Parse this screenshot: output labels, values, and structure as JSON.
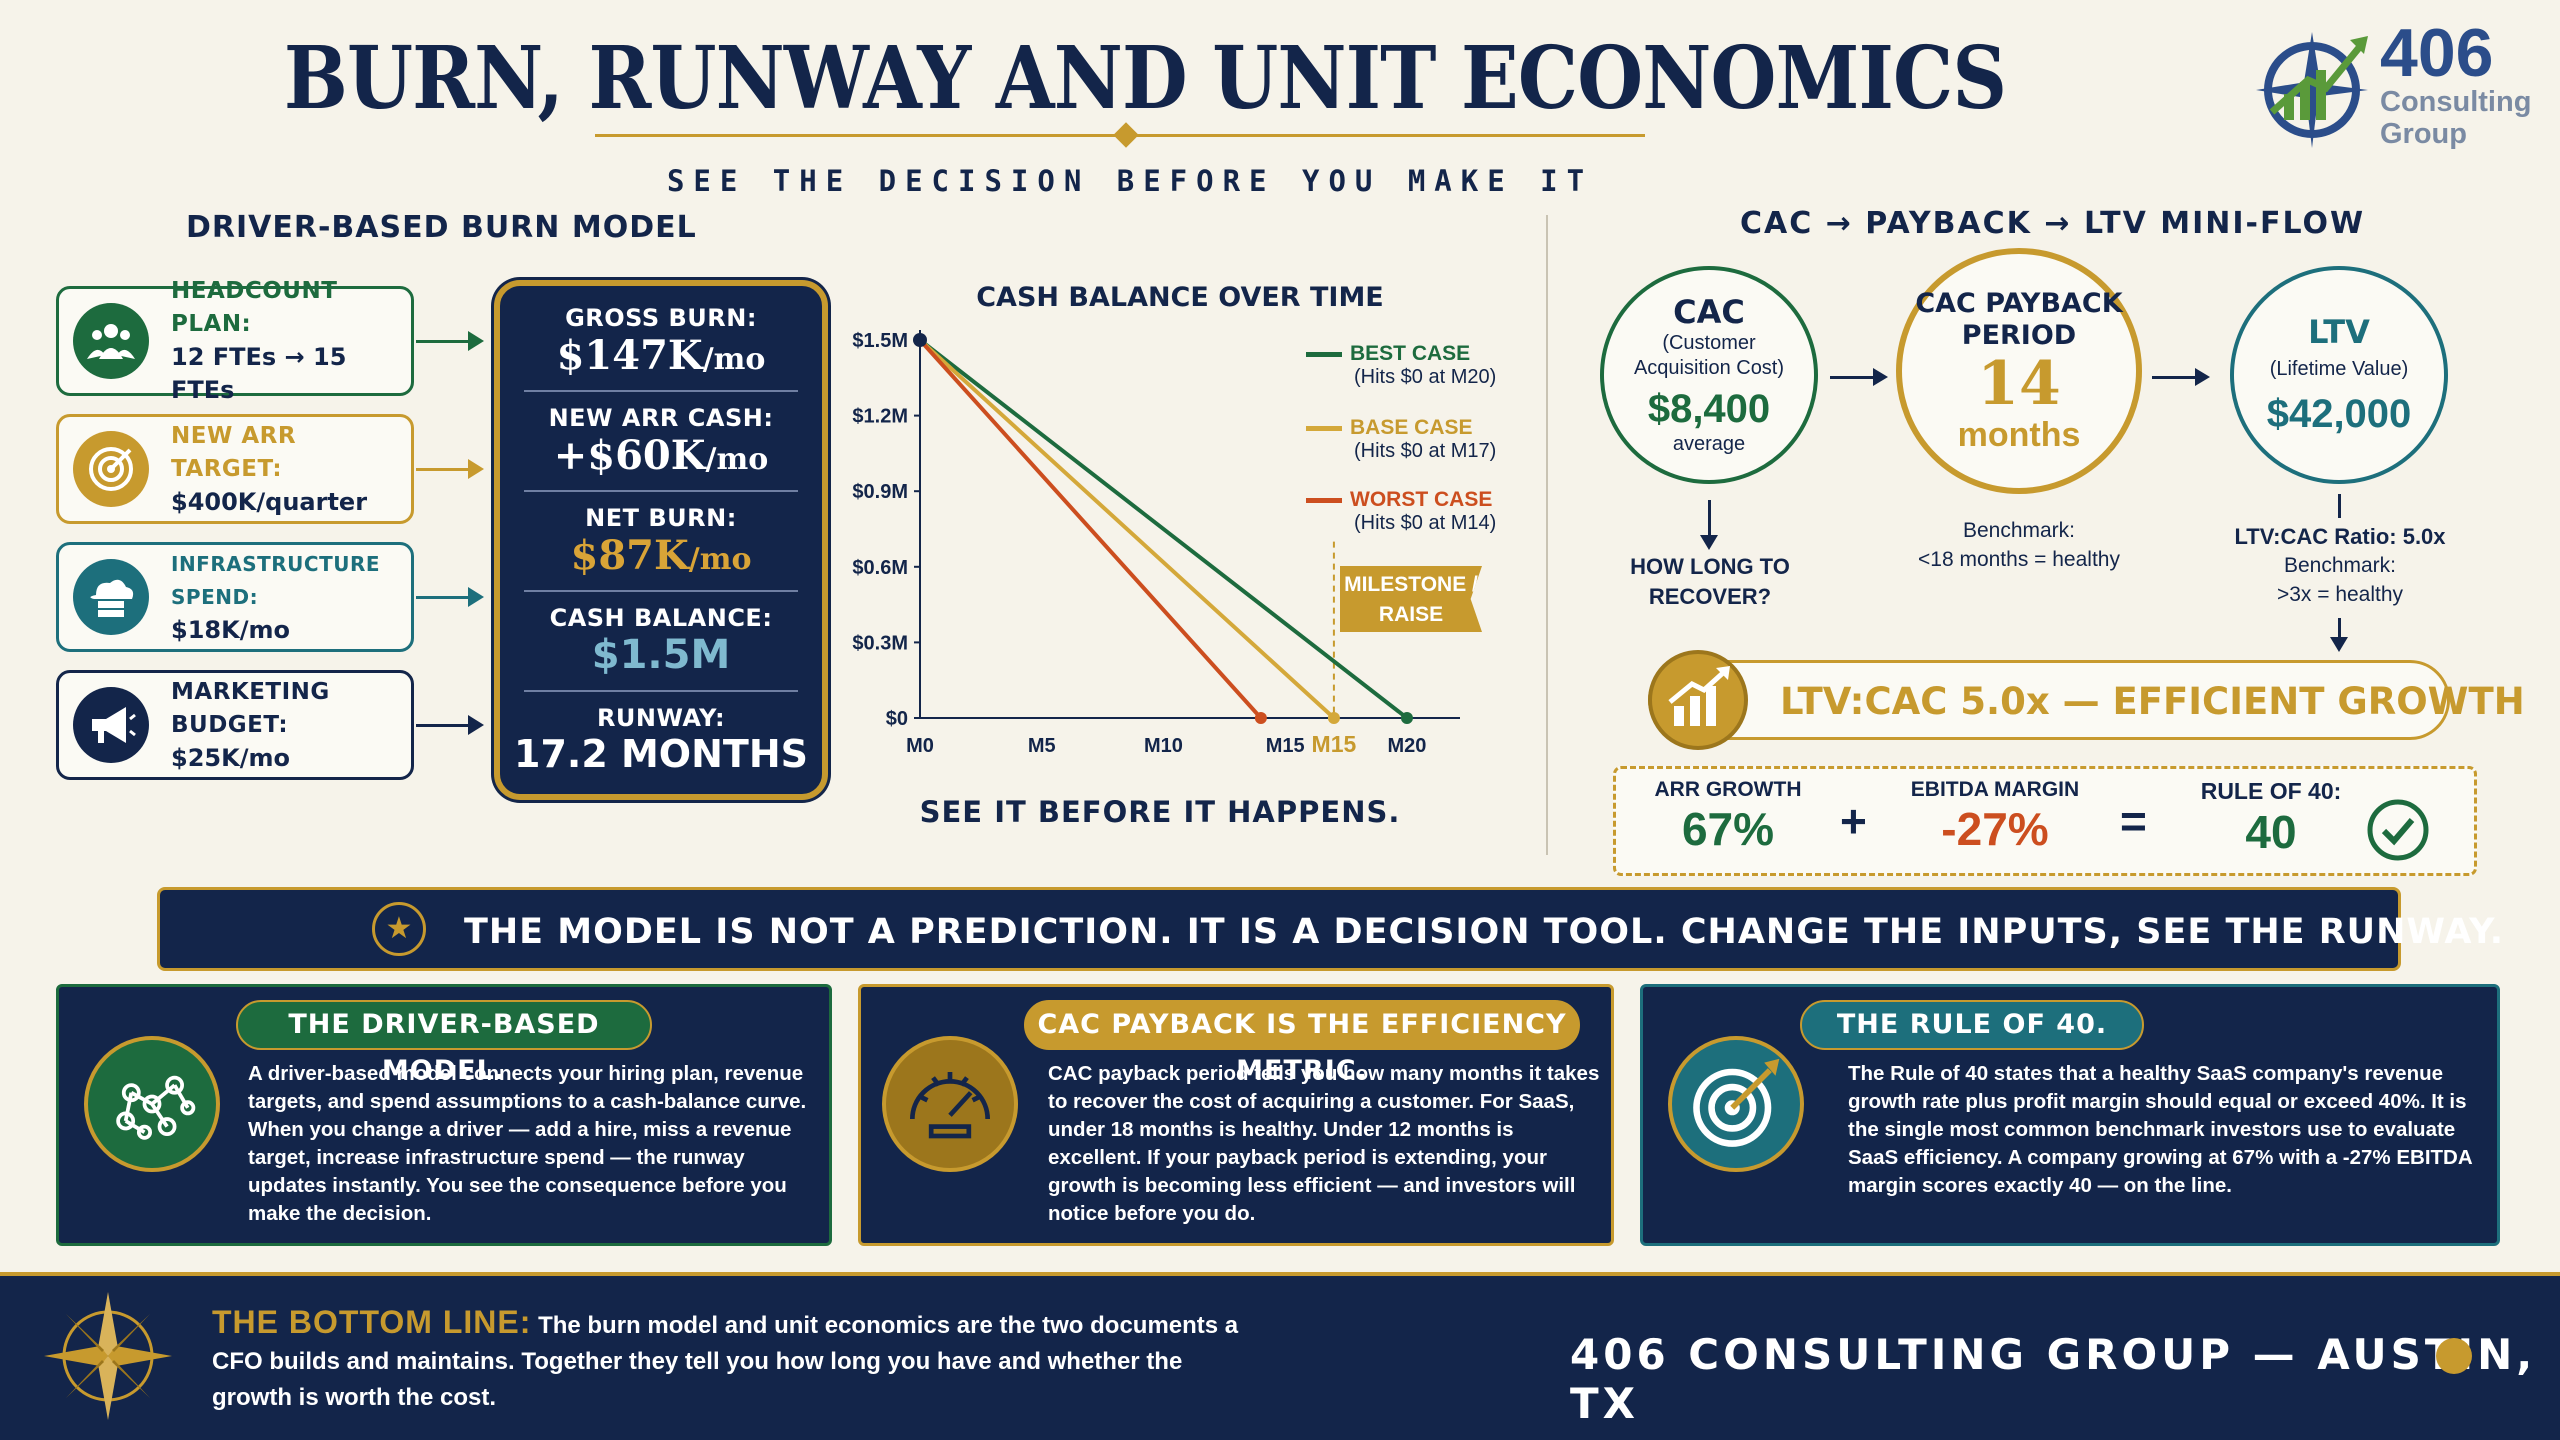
{
  "header": {
    "title": "BURN, RUNWAY AND UNIT ECONOMICS",
    "subtitle": "SEE THE DECISION BEFORE YOU MAKE IT"
  },
  "logo": {
    "number": "406",
    "line1": "Consulting",
    "line2": "Group"
  },
  "driver_section": {
    "title": "DRIVER-BASED BURN MODEL",
    "drivers": [
      {
        "label": "HEADCOUNT PLAN:",
        "value": "12 FTEs → 15 FTEs",
        "icon": "people-icon",
        "color": "#1d6b3e"
      },
      {
        "label": "NEW ARR TARGET:",
        "value": "$400K/quarter",
        "icon": "target-icon",
        "color": "#c79a2e"
      },
      {
        "label": "INFRASTRUCTURE SPEND:",
        "value": "$18K/mo",
        "icon": "cloud-server-icon",
        "color": "#1d6f7c"
      },
      {
        "label": "MARKETING BUDGET:",
        "value": "$25K/mo",
        "icon": "megaphone-icon",
        "color": "#13254a"
      }
    ]
  },
  "burn_panel": {
    "gross_burn_label": "GROSS BURN:",
    "gross_burn_value": "$147K",
    "gross_burn_unit": "/mo",
    "new_arr_label": "NEW ARR CASH:",
    "new_arr_value": "+$60K",
    "new_arr_unit": "/mo",
    "net_burn_label": "NET BURN:",
    "net_burn_value": "$87K",
    "net_burn_unit": "/mo",
    "cash_label": "CASH BALANCE:",
    "cash_value": "$1.5M",
    "runway_label": "RUNWAY:",
    "runway_value": "17.2 MONTHS"
  },
  "chart_data": {
    "type": "line",
    "title": "CASH BALANCE OVER TIME",
    "caption": "SEE IT BEFORE IT HAPPENS.",
    "y_ticks": [
      "$0",
      "$0.3M",
      "$0.6M",
      "$0.9M",
      "$1.2M",
      "$1.5M"
    ],
    "x_ticks": [
      "M0",
      "M5",
      "M10",
      "M15",
      "M15",
      "M20"
    ],
    "xlim": [
      0,
      23
    ],
    "ylim": [
      0,
      1.5
    ],
    "series": [
      {
        "name": "BEST CASE",
        "note": "(Hits $0 at M20)",
        "color": "#1d6b3e",
        "x": [
          0,
          20
        ],
        "y": [
          1.5,
          0
        ]
      },
      {
        "name": "BASE CASE",
        "note": "(Hits $0 at M17)",
        "color": "#d4a83a",
        "x": [
          0,
          17
        ],
        "y": [
          1.5,
          0
        ]
      },
      {
        "name": "WORST CASE",
        "note": "(Hits $0 at M14)",
        "color": "#cc4e1f",
        "x": [
          0,
          14
        ],
        "y": [
          1.5,
          0
        ]
      }
    ],
    "milestone_label": "MILESTONE / RAISE",
    "milestone_x": 17
  },
  "flow": {
    "title": "CAC → PAYBACK → LTV MINI-FLOW",
    "cac": {
      "head": "CAC",
      "sub1": "(Customer",
      "sub2": "Acquisition Cost)",
      "value": "$8,400",
      "foot": "average",
      "question": "HOW LONG TO RECOVER?"
    },
    "payback": {
      "head1": "CAC PAYBACK",
      "head2": "PERIOD",
      "value": "14",
      "unit": "months",
      "bench1": "Benchmark:",
      "bench2": "<18 months = healthy"
    },
    "ltv": {
      "head": "LTV",
      "sub": "(Lifetime Value)",
      "value": "$42,000",
      "ratio": "LTV:CAC Ratio: 5.0x",
      "bench1": "Benchmark:",
      "bench2": ">3x = healthy"
    },
    "efficient": "LTV:CAC 5.0x — EFFICIENT GROWTH",
    "rule40": {
      "arr_label": "ARR GROWTH",
      "arr_value": "67%",
      "plus": "+",
      "ebitda_label": "EBITDA MARGIN",
      "ebitda_value": "-27%",
      "equals": "=",
      "rule_label": "RULE OF 40:",
      "rule_value": "40"
    }
  },
  "banner": "THE MODEL IS NOT A PREDICTION. IT IS A DECISION TOOL. CHANGE THE INPUTS, SEE THE RUNWAY.",
  "cards": [
    {
      "title": "THE DRIVER-BASED MODEL.",
      "body": "A driver-based model connects your hiring plan, revenue targets, and spend assumptions to a cash-balance curve. When you change a driver — add a hire, miss a revenue target, increase infrastructure spend — the runway updates instantly. You see the consequence before you make the decision."
    },
    {
      "title": "CAC PAYBACK IS THE EFFICIENCY METRIC.",
      "body": "CAC payback period tells you how many months it takes to recover the cost of acquiring a customer. For SaaS, under 18 months is healthy. Under 12 months is excellent. If your payback period is extending, your growth is becoming less efficient — and investors will notice before you do."
    },
    {
      "title": "THE RULE OF 40.",
      "body": "The Rule of 40 states that a healthy SaaS company's revenue growth rate plus profit margin should equal or exceed 40%. It is the single most common benchmark investors use to evaluate SaaS efficiency. A company growing at 67% with a -27% EBITDA margin scores exactly 40 — on the line."
    }
  ],
  "footer": {
    "label": "THE BOTTOM LINE:",
    "text": "The burn model and unit economics are the two documents a CFO builds and maintains. Together they tell you how long you have and whether the growth is worth the cost.",
    "brand": "406 CONSULTING GROUP — AUSTIN, TX"
  }
}
